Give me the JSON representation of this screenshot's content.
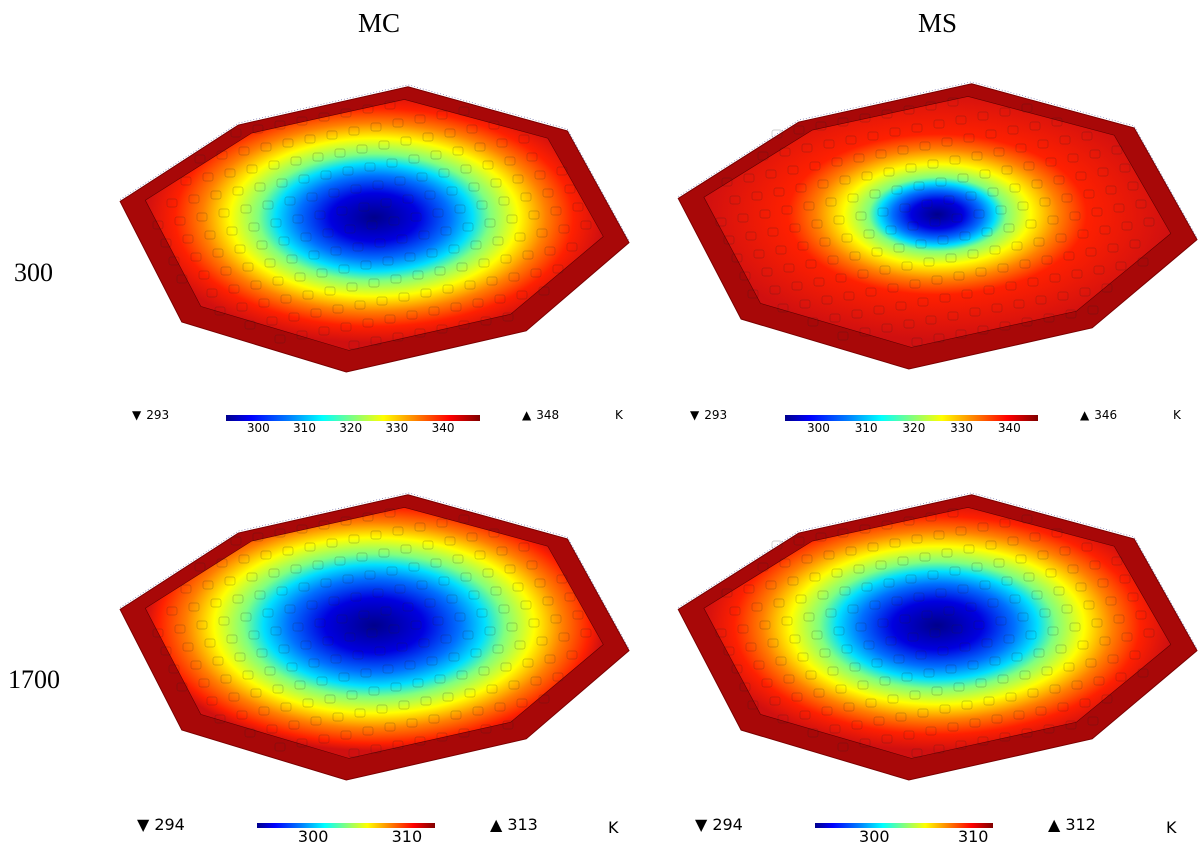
{
  "columns": [
    "MC",
    "MS"
  ],
  "rows": [
    "300",
    "1700"
  ],
  "panels": [
    {
      "id": "mc-300",
      "min": "293",
      "max": "348",
      "unit": "K",
      "ticks": [
        "300",
        "310",
        "320",
        "330",
        "340"
      ],
      "ticks_values": [
        300,
        310,
        320,
        330,
        340
      ],
      "range": [
        293,
        348
      ],
      "core_size": 0.55
    },
    {
      "id": "ms-300",
      "min": "293",
      "max": "346",
      "unit": "K",
      "ticks": [
        "300",
        "310",
        "320",
        "330",
        "340"
      ],
      "ticks_values": [
        300,
        310,
        320,
        330,
        340
      ],
      "range": [
        293,
        346
      ],
      "core_size": 0.32
    },
    {
      "id": "mc-1700",
      "min": "294",
      "max": "313",
      "unit": "K",
      "ticks": [
        "300",
        "310"
      ],
      "ticks_values": [
        300,
        310
      ],
      "range": [
        294,
        313
      ],
      "core_size": 0.62
    },
    {
      "id": "ms-1700",
      "min": "294",
      "max": "312",
      "unit": "K",
      "ticks": [
        "300",
        "310"
      ],
      "ticks_values": [
        300,
        310
      ],
      "range": [
        294,
        312
      ],
      "core_size": 0.55
    }
  ],
  "colors": {
    "hot": "#cc1010",
    "edge": "#8a0000",
    "cold": "#00008c"
  }
}
